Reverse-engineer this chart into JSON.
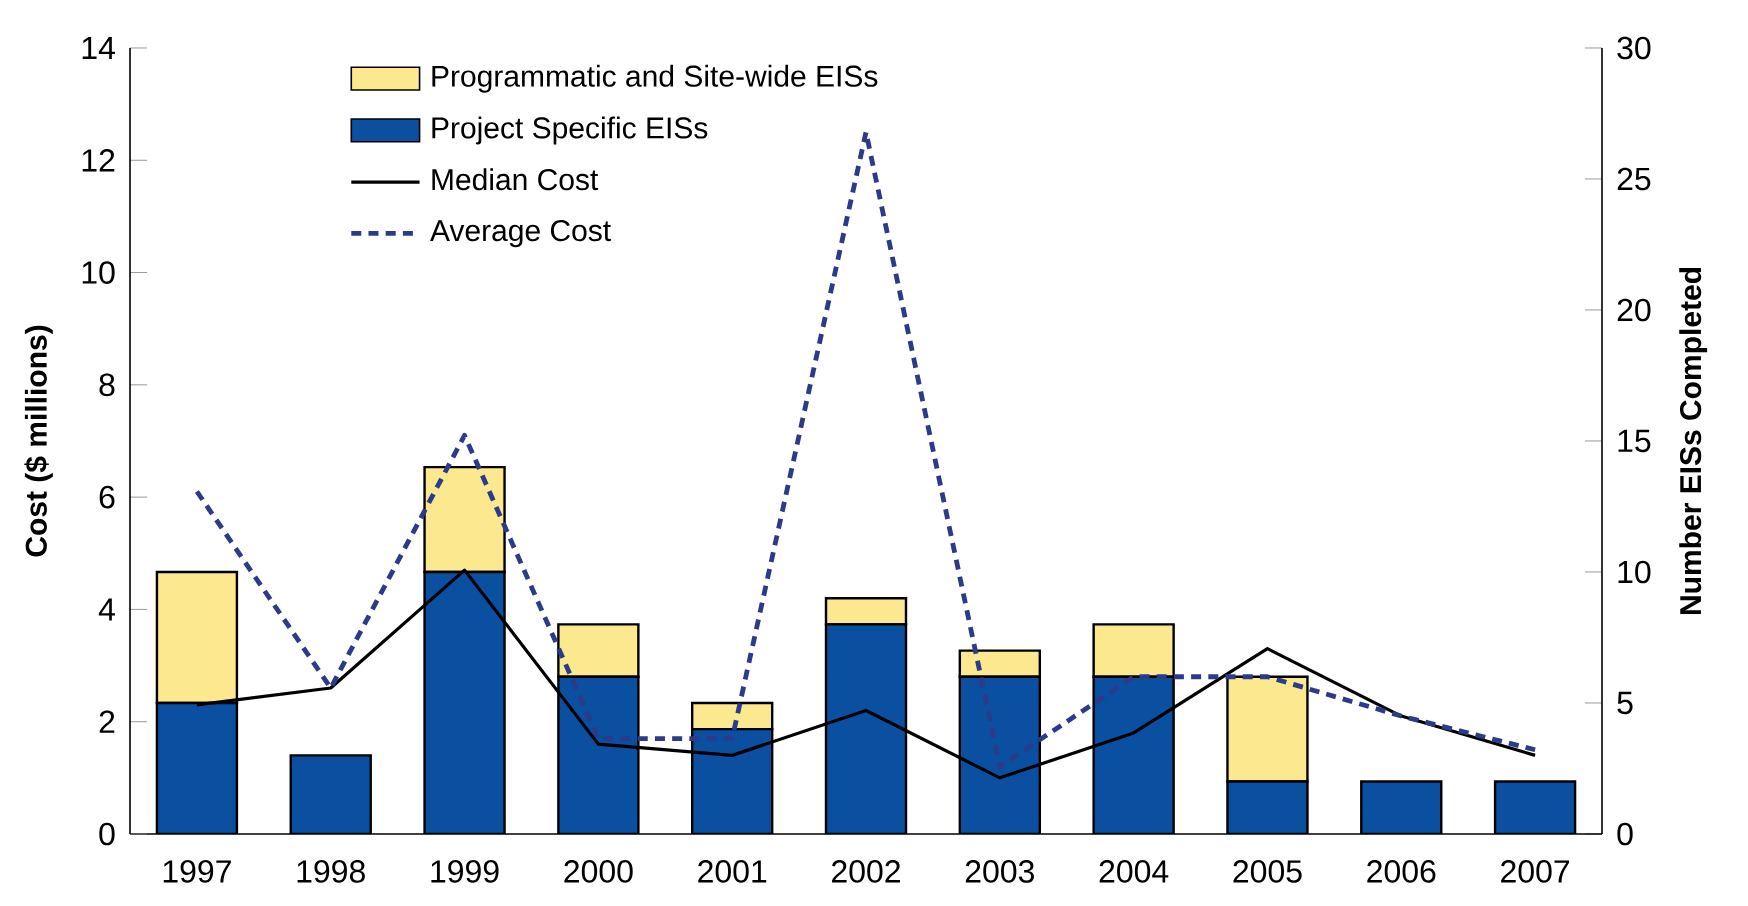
{
  "chart_data": {
    "type": "bar",
    "stacked": true,
    "categories": [
      "1997",
      "1998",
      "1999",
      "2000",
      "2001",
      "2002",
      "2003",
      "2004",
      "2005",
      "2006",
      "2007"
    ],
    "ylabel": "Cost ($ millions)",
    "y2label": "Number EISs Completed",
    "ylim": [
      0,
      14
    ],
    "yticks": [
      0,
      2,
      4,
      6,
      8,
      10,
      12,
      14
    ],
    "y2lim": [
      0,
      30
    ],
    "y2ticks": [
      0,
      5,
      10,
      15,
      20,
      25,
      30
    ],
    "legend": "top left",
    "grid": false,
    "marker": "none",
    "series": [
      {
        "name": "Project Specific EISs",
        "axis": "y2",
        "color": "#0b4fa0",
        "values": [
          5,
          3,
          10,
          6,
          4,
          8,
          6,
          6,
          2,
          2,
          2
        ]
      },
      {
        "name": "Programmatic and Site-wide EISs",
        "axis": "y2",
        "color": "#fbe88f",
        "values": [
          5,
          0,
          4,
          2,
          1,
          1,
          1,
          2,
          4,
          0,
          0
        ]
      },
      {
        "name": "Median Cost",
        "type": "line",
        "line_style": "solid",
        "color": "#000000",
        "values": [
          2.3,
          2.6,
          4.7,
          1.6,
          1.4,
          2.2,
          1.0,
          1.8,
          3.3,
          2.1,
          1.4
        ]
      },
      {
        "name": "Average Cost",
        "type": "line",
        "line_style": "dashed",
        "color": "#2b3a8a",
        "values": [
          6.1,
          2.6,
          7.1,
          1.7,
          1.7,
          12.5,
          1.2,
          2.8,
          2.8,
          2.1,
          1.5
        ]
      }
    ]
  }
}
